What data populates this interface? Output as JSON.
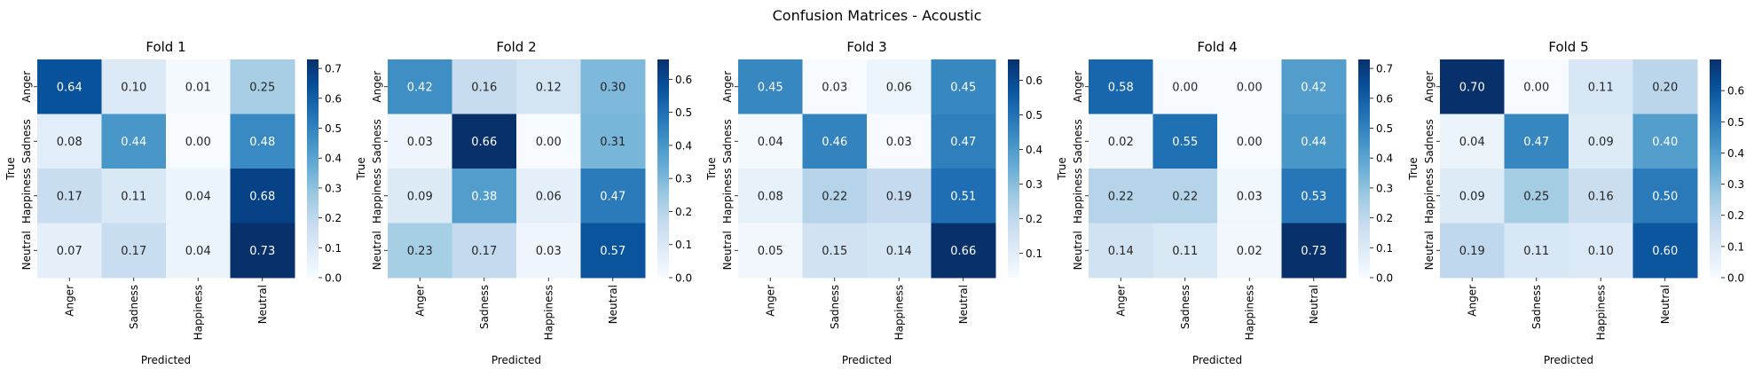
{
  "figure": {
    "title": "Confusion Matrices - Acoustic",
    "colormap": "Blues",
    "colors": {
      "low": "#f7fbff",
      "mid": "#6baed6",
      "high": "#08306b",
      "text_on_light": "#262626",
      "text_on_dark": "#ffffff"
    }
  },
  "chart_data": [
    {
      "type": "heatmap",
      "title": "Fold 1",
      "xlabel": "Predicted",
      "ylabel": "True",
      "x_categories": [
        "Anger",
        "Sadness",
        "Happiness",
        "Neutral"
      ],
      "y_categories": [
        "Anger",
        "Sadness",
        "Happiness",
        "Neutral"
      ],
      "values": [
        [
          0.64,
          0.1,
          0.01,
          0.25
        ],
        [
          0.08,
          0.44,
          0.0,
          0.48
        ],
        [
          0.17,
          0.11,
          0.04,
          0.68
        ],
        [
          0.07,
          0.17,
          0.04,
          0.73
        ]
      ],
      "value_labels": [
        [
          "0.64",
          "0.10",
          "0.01",
          "0.25"
        ],
        [
          "0.08",
          "0.44",
          "0.00",
          "0.48"
        ],
        [
          "0.17",
          "0.11",
          "0.04",
          "0.68"
        ],
        [
          "0.07",
          "0.17",
          "0.04",
          "0.73"
        ]
      ],
      "colorbar": {
        "range": [
          0.0,
          0.73
        ],
        "ticks": [
          0.0,
          0.1,
          0.2,
          0.3,
          0.4,
          0.5,
          0.6,
          0.7
        ],
        "tick_labels": [
          "0.0",
          "0.1",
          "0.2",
          "0.3",
          "0.4",
          "0.5",
          "0.6",
          "0.7"
        ]
      }
    },
    {
      "type": "heatmap",
      "title": "Fold 2",
      "xlabel": "Predicted",
      "ylabel": "True",
      "x_categories": [
        "Anger",
        "Sadness",
        "Happiness",
        "Neutral"
      ],
      "y_categories": [
        "Anger",
        "Sadness",
        "Happiness",
        "Neutral"
      ],
      "values": [
        [
          0.42,
          0.16,
          0.12,
          0.3
        ],
        [
          0.03,
          0.66,
          0.0,
          0.31
        ],
        [
          0.09,
          0.38,
          0.06,
          0.47
        ],
        [
          0.23,
          0.17,
          0.03,
          0.57
        ]
      ],
      "value_labels": [
        [
          "0.42",
          "0.16",
          "0.12",
          "0.30"
        ],
        [
          "0.03",
          "0.66",
          "0.00",
          "0.31"
        ],
        [
          "0.09",
          "0.38",
          "0.06",
          "0.47"
        ],
        [
          "0.23",
          "0.17",
          "0.03",
          "0.57"
        ]
      ],
      "colorbar": {
        "range": [
          0.0,
          0.66
        ],
        "ticks": [
          0.0,
          0.1,
          0.2,
          0.3,
          0.4,
          0.5,
          0.6
        ],
        "tick_labels": [
          "0.0",
          "0.1",
          "0.2",
          "0.3",
          "0.4",
          "0.5",
          "0.6"
        ]
      }
    },
    {
      "type": "heatmap",
      "title": "Fold 3",
      "xlabel": "Predicted",
      "ylabel": "True",
      "x_categories": [
        "Anger",
        "Sadness",
        "Happiness",
        "Neutral"
      ],
      "y_categories": [
        "Anger",
        "Sadness",
        "Happiness",
        "Neutral"
      ],
      "values": [
        [
          0.45,
          0.03,
          0.06,
          0.45
        ],
        [
          0.04,
          0.46,
          0.03,
          0.47
        ],
        [
          0.08,
          0.22,
          0.19,
          0.51
        ],
        [
          0.05,
          0.15,
          0.14,
          0.66
        ]
      ],
      "value_labels": [
        [
          "0.45",
          "0.03",
          "0.06",
          "0.45"
        ],
        [
          "0.04",
          "0.46",
          "0.03",
          "0.47"
        ],
        [
          "0.08",
          "0.22",
          "0.19",
          "0.51"
        ],
        [
          "0.05",
          "0.15",
          "0.14",
          "0.66"
        ]
      ],
      "colorbar": {
        "range": [
          0.03,
          0.66
        ],
        "ticks": [
          0.1,
          0.2,
          0.3,
          0.4,
          0.5,
          0.6
        ],
        "tick_labels": [
          "0.1",
          "0.2",
          "0.3",
          "0.4",
          "0.5",
          "0.6"
        ]
      }
    },
    {
      "type": "heatmap",
      "title": "Fold 4",
      "xlabel": "Predicted",
      "ylabel": "True",
      "x_categories": [
        "Anger",
        "Sadness",
        "Happiness",
        "Neutral"
      ],
      "y_categories": [
        "Anger",
        "Sadness",
        "Happiness",
        "Neutral"
      ],
      "values": [
        [
          0.58,
          0.0,
          0.0,
          0.42
        ],
        [
          0.02,
          0.55,
          0.0,
          0.44
        ],
        [
          0.22,
          0.22,
          0.03,
          0.53
        ],
        [
          0.14,
          0.11,
          0.02,
          0.73
        ]
      ],
      "value_labels": [
        [
          "0.58",
          "0.00",
          "0.00",
          "0.42"
        ],
        [
          "0.02",
          "0.55",
          "0.00",
          "0.44"
        ],
        [
          "0.22",
          "0.22",
          "0.03",
          "0.53"
        ],
        [
          "0.14",
          "0.11",
          "0.02",
          "0.73"
        ]
      ],
      "colorbar": {
        "range": [
          0.0,
          0.73
        ],
        "ticks": [
          0.0,
          0.1,
          0.2,
          0.3,
          0.4,
          0.5,
          0.6,
          0.7
        ],
        "tick_labels": [
          "0.0",
          "0.1",
          "0.2",
          "0.3",
          "0.4",
          "0.5",
          "0.6",
          "0.7"
        ]
      }
    },
    {
      "type": "heatmap",
      "title": "Fold 5",
      "xlabel": "Predicted",
      "ylabel": "True",
      "x_categories": [
        "Anger",
        "Sadness",
        "Happiness",
        "Neutral"
      ],
      "y_categories": [
        "Anger",
        "Sadness",
        "Happiness",
        "Neutral"
      ],
      "values": [
        [
          0.7,
          0.0,
          0.11,
          0.2
        ],
        [
          0.04,
          0.47,
          0.09,
          0.4
        ],
        [
          0.09,
          0.25,
          0.16,
          0.5
        ],
        [
          0.19,
          0.11,
          0.1,
          0.6
        ]
      ],
      "value_labels": [
        [
          "0.70",
          "0.00",
          "0.11",
          "0.20"
        ],
        [
          "0.04",
          "0.47",
          "0.09",
          "0.40"
        ],
        [
          "0.09",
          "0.25",
          "0.16",
          "0.50"
        ],
        [
          "0.19",
          "0.11",
          "0.10",
          "0.60"
        ]
      ],
      "colorbar": {
        "range": [
          0.0,
          0.7
        ],
        "ticks": [
          0.0,
          0.1,
          0.2,
          0.3,
          0.4,
          0.5,
          0.6
        ],
        "tick_labels": [
          "0.0",
          "0.1",
          "0.2",
          "0.3",
          "0.4",
          "0.5",
          "0.6"
        ]
      }
    }
  ]
}
